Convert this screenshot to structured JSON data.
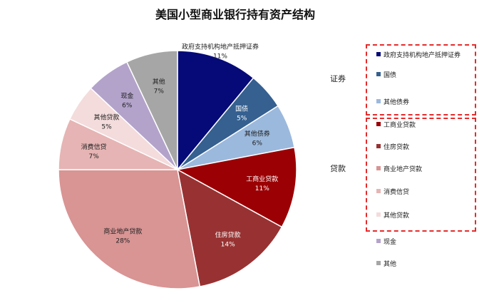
{
  "chart_data": {
    "type": "pie",
    "title": "美国小型商业银行持有资产结构",
    "slices": [
      {
        "label": "政府支持机构地产抵押证券",
        "value": 11,
        "value_label": "11%",
        "color": "#050a78"
      },
      {
        "label": "国债",
        "value": 5,
        "value_label": "5%",
        "color": "#356090"
      },
      {
        "label": "其他债券",
        "value": 6,
        "value_label": "6%",
        "color": "#9bb9dd"
      },
      {
        "label": "工商业贷款",
        "value": 11,
        "value_label": "11%",
        "color": "#9b0004"
      },
      {
        "label": "住房贷款",
        "value": 14,
        "value_label": "14%",
        "color": "#983232"
      },
      {
        "label": "商业地产贷款",
        "value": 28,
        "value_label": "28%",
        "color": "#d99494"
      },
      {
        "label": "消费信贷",
        "value": 7,
        "value_label": "7%",
        "color": "#e6b4b4"
      },
      {
        "label": "其他贷款",
        "value": 5,
        "value_label": "5%",
        "color": "#f4dcdc"
      },
      {
        "label": "现金",
        "value": 6,
        "value_label": "6%",
        "color": "#b3a3cb"
      },
      {
        "label": "其他",
        "value": 7,
        "value_label": "7%",
        "color": "#a6a6a6"
      }
    ],
    "legend_position": "right",
    "groups": [
      {
        "label": "证券",
        "members": [
          "政府支持机构地产抵押证券",
          "国债",
          "其他债券"
        ]
      },
      {
        "label": "贷款",
        "members": [
          "工商业贷款",
          "住房贷款",
          "商业地产贷款",
          "消费信贷",
          "其他贷款"
        ]
      }
    ]
  }
}
